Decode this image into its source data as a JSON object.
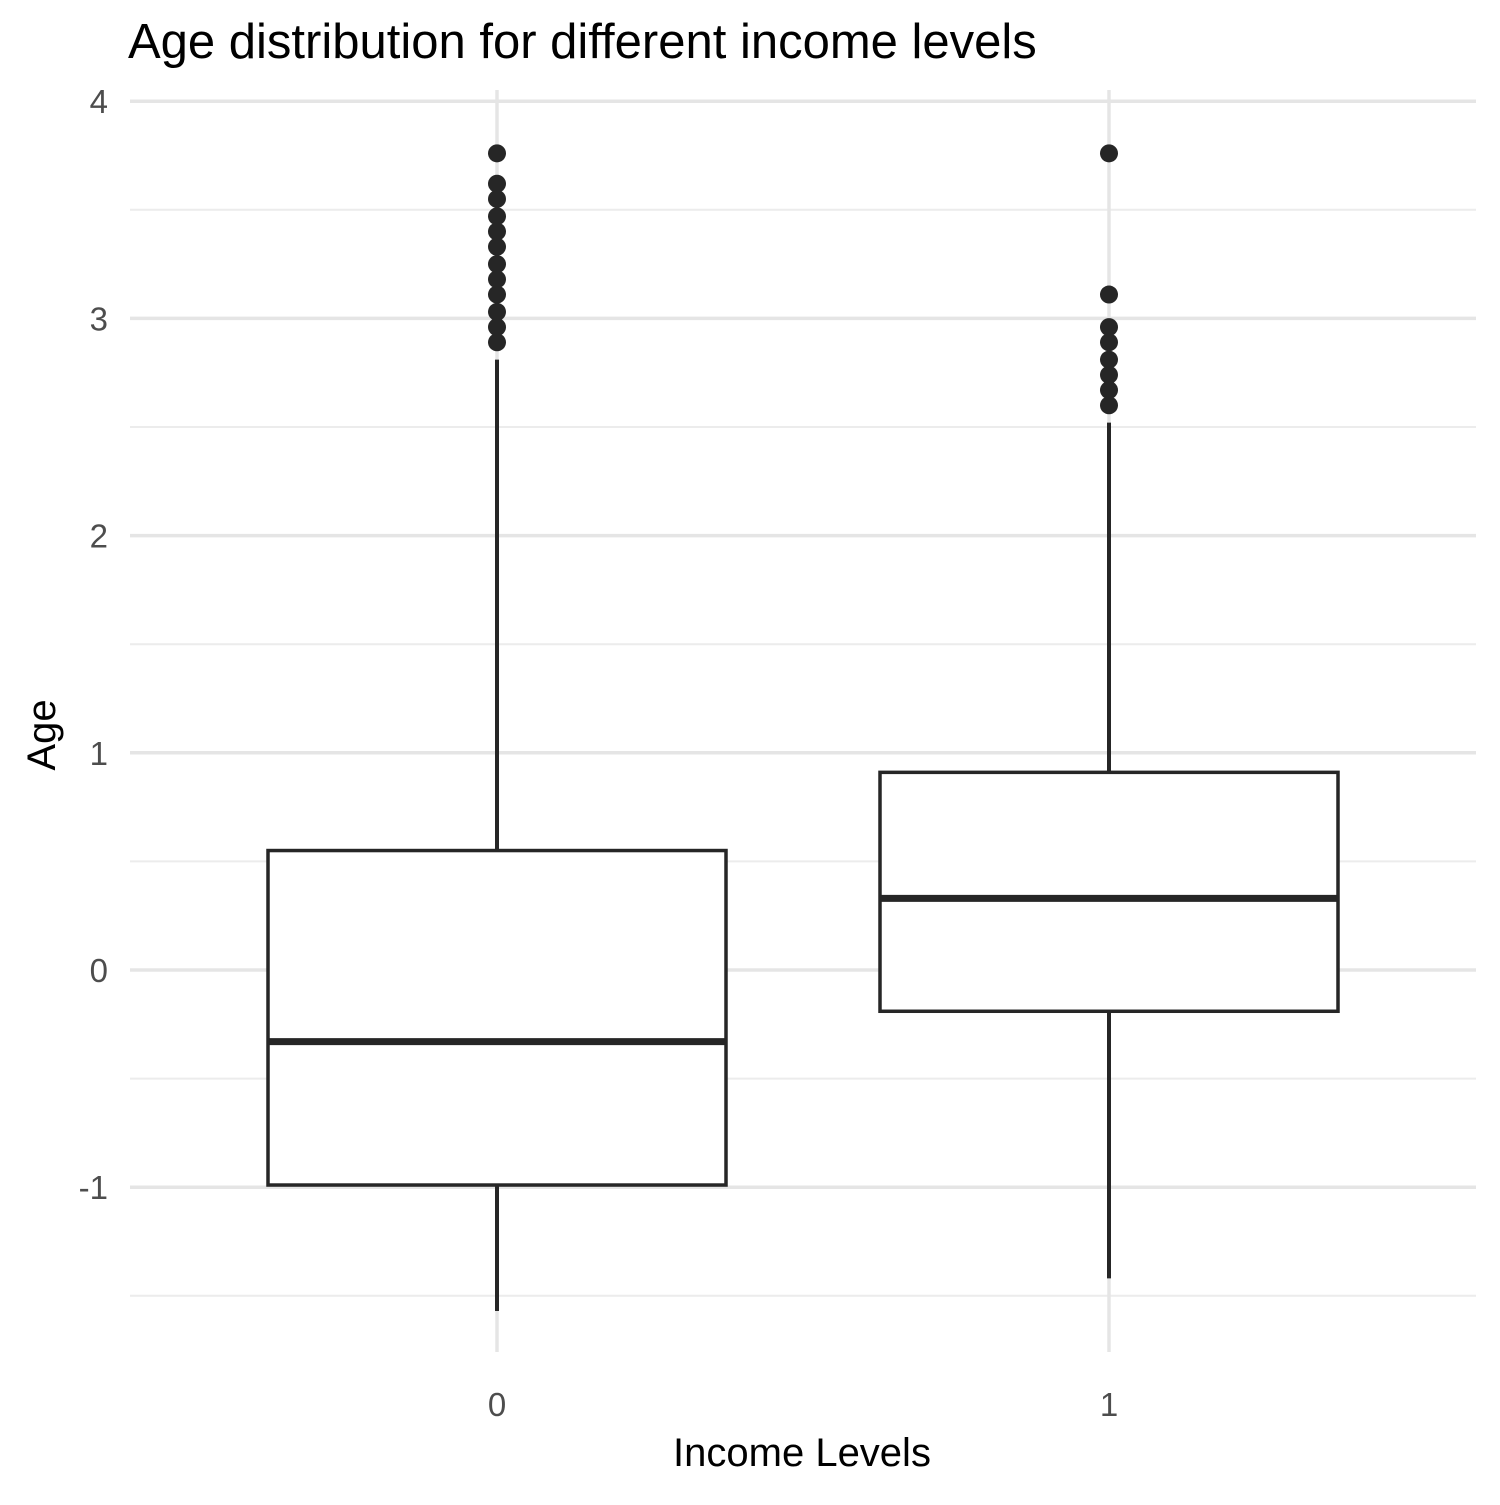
{
  "chart_data": {
    "type": "boxplot",
    "title": "Age distribution for different income levels",
    "xlabel": "Income Levels",
    "ylabel": "Age",
    "categories": [
      "0",
      "1"
    ],
    "y_ticks": [
      -1,
      0,
      1,
      2,
      3,
      4
    ],
    "y_tick_labels": [
      "-1",
      "0",
      "1",
      "2",
      "3",
      "4"
    ],
    "ylim": [
      -1.75,
      4
    ],
    "grid": true,
    "boxes": [
      {
        "category": "0",
        "lower_whisker": -1.57,
        "q1": -0.99,
        "median": -0.33,
        "q3": 0.55,
        "upper_whisker": 2.81,
        "outliers": [
          2.89,
          2.96,
          3.03,
          3.11,
          3.18,
          3.25,
          3.33,
          3.4,
          3.47,
          3.55,
          3.62,
          3.76
        ]
      },
      {
        "category": "1",
        "lower_whisker": -1.42,
        "q1": -0.19,
        "median": 0.33,
        "q3": 0.91,
        "upper_whisker": 2.52,
        "outliers": [
          2.6,
          2.67,
          2.74,
          2.81,
          2.89,
          2.96,
          3.11,
          3.76
        ]
      }
    ],
    "colors": {
      "box_fill": "#ffffff",
      "box_stroke": "#262626",
      "outlier": "#262626",
      "grid_major": "#e5e5e5",
      "grid_minor": "#ececec",
      "tick_label": "#4d4d4d",
      "axis_title": "#000000"
    }
  }
}
